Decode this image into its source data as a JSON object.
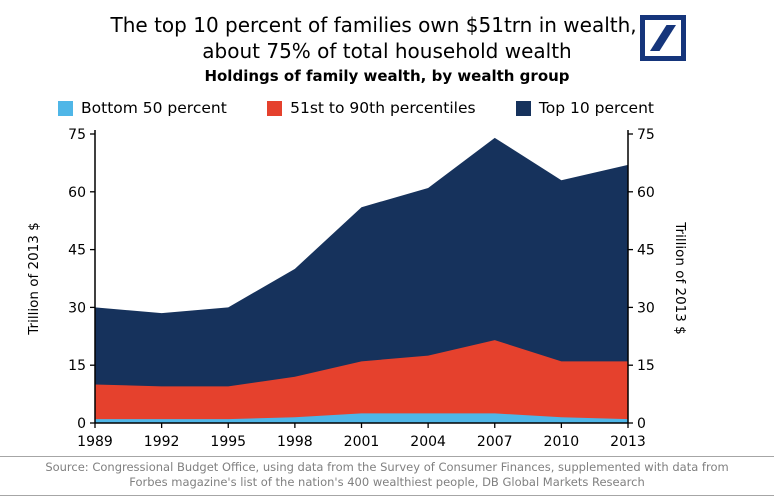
{
  "page": {
    "title": "The top 10 percent of families own $51trn in wealth, or about 75% of total household wealth",
    "subtitle": "Holdings of family wealth, by wealth group",
    "logo_color": "#15357B",
    "source_line1": "Source: Congressional Budget Office, using data from the Survey of Consumer Finances, supplemented with data from",
    "source_line2": "Forbes magazine's list of the nation's 400 wealthiest people, DB Global Markets Research"
  },
  "chart_data": {
    "type": "area",
    "stacked": true,
    "title": "Holdings of family wealth, by wealth group",
    "categories": [
      1989,
      1992,
      1995,
      1998,
      2001,
      2004,
      2007,
      2010,
      2013
    ],
    "series": [
      {
        "name": "Bottom 50 percent",
        "color": "#4FB6E7",
        "values": [
          1,
          1,
          1,
          1.5,
          2.5,
          2.5,
          2.5,
          1.5,
          1
        ]
      },
      {
        "name": "51st to 90th percentiles",
        "color": "#E5412D",
        "values": [
          9,
          8.5,
          8.5,
          10.5,
          13.5,
          15,
          19,
          14.5,
          15
        ]
      },
      {
        "name": "Top 10 percent",
        "color": "#16325C",
        "values": [
          20,
          19,
          20.5,
          28,
          40,
          43.5,
          52.5,
          47,
          51
        ]
      }
    ],
    "totals": [
      30,
      28.5,
      30,
      40,
      56,
      61,
      74,
      63,
      67
    ],
    "ylabel_left": "Trillion of 2013 $",
    "ylabel_right": "Trillion of 2013 $",
    "ylim": [
      0,
      75
    ],
    "yticks": [
      0,
      15,
      30,
      45,
      60,
      75
    ],
    "legend_position": "top",
    "grid": false
  }
}
